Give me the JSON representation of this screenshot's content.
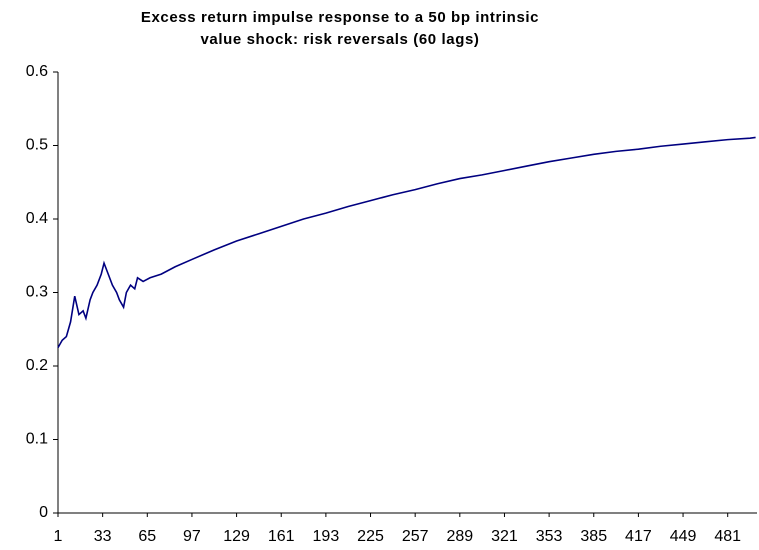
{
  "chart_data": {
    "type": "line",
    "title": [
      "Excess return impulse response to a 50 bp intrinsic",
      "value shock: risk reversals (60 lags)"
    ],
    "x": [
      1,
      4,
      7,
      10,
      13,
      16,
      19,
      21,
      24,
      26,
      29,
      32,
      34,
      37,
      40,
      43,
      45,
      48,
      50,
      53,
      56,
      58,
      62,
      67,
      75,
      85,
      97,
      113,
      129,
      145,
      161,
      177,
      193,
      209,
      225,
      241,
      257,
      273,
      289,
      305,
      321,
      337,
      353,
      369,
      385,
      401,
      417,
      433,
      449,
      465,
      481,
      497,
      501
    ],
    "values": [
      0.225,
      0.235,
      0.24,
      0.26,
      0.295,
      0.27,
      0.275,
      0.265,
      0.29,
      0.3,
      0.31,
      0.325,
      0.34,
      0.325,
      0.31,
      0.3,
      0.29,
      0.28,
      0.3,
      0.31,
      0.305,
      0.32,
      0.315,
      0.32,
      0.325,
      0.335,
      0.345,
      0.358,
      0.37,
      0.38,
      0.39,
      0.4,
      0.408,
      0.417,
      0.425,
      0.433,
      0.44,
      0.448,
      0.455,
      0.46,
      0.466,
      0.472,
      0.478,
      0.483,
      0.488,
      0.492,
      0.495,
      0.499,
      0.502,
      0.505,
      0.508,
      0.51,
      0.511
    ],
    "color": "#000080",
    "xlim": [
      1,
      502
    ],
    "xticks": [
      1,
      33,
      65,
      97,
      129,
      161,
      193,
      225,
      257,
      289,
      321,
      353,
      385,
      417,
      449,
      481
    ],
    "ylim": [
      0,
      0.6
    ],
    "yticks": [
      0,
      0.1,
      0.2,
      0.3,
      0.4,
      0.5,
      0.6
    ],
    "grid": false
  }
}
